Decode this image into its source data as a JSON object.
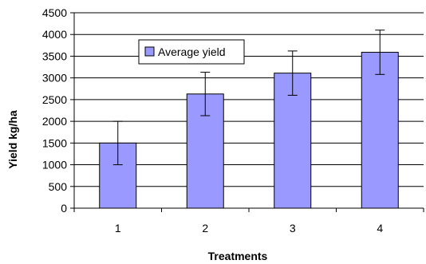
{
  "chart_data": {
    "type": "bar",
    "categories": [
      "1",
      "2",
      "3",
      "4"
    ],
    "series": [
      {
        "name": "Average yield",
        "values": [
          1500,
          2630,
          3110,
          3590
        ],
        "error": [
          500,
          500,
          510,
          510
        ],
        "color": "#9999ff"
      }
    ],
    "xlabel": "Treatments",
    "ylabel": "Yield kg/ha",
    "ylim": [
      0,
      4500
    ],
    "yticks": [
      0,
      500,
      1000,
      1500,
      2000,
      2500,
      3000,
      3500,
      4000,
      4500
    ],
    "grid": true,
    "legend_position": "top-left-inside"
  }
}
